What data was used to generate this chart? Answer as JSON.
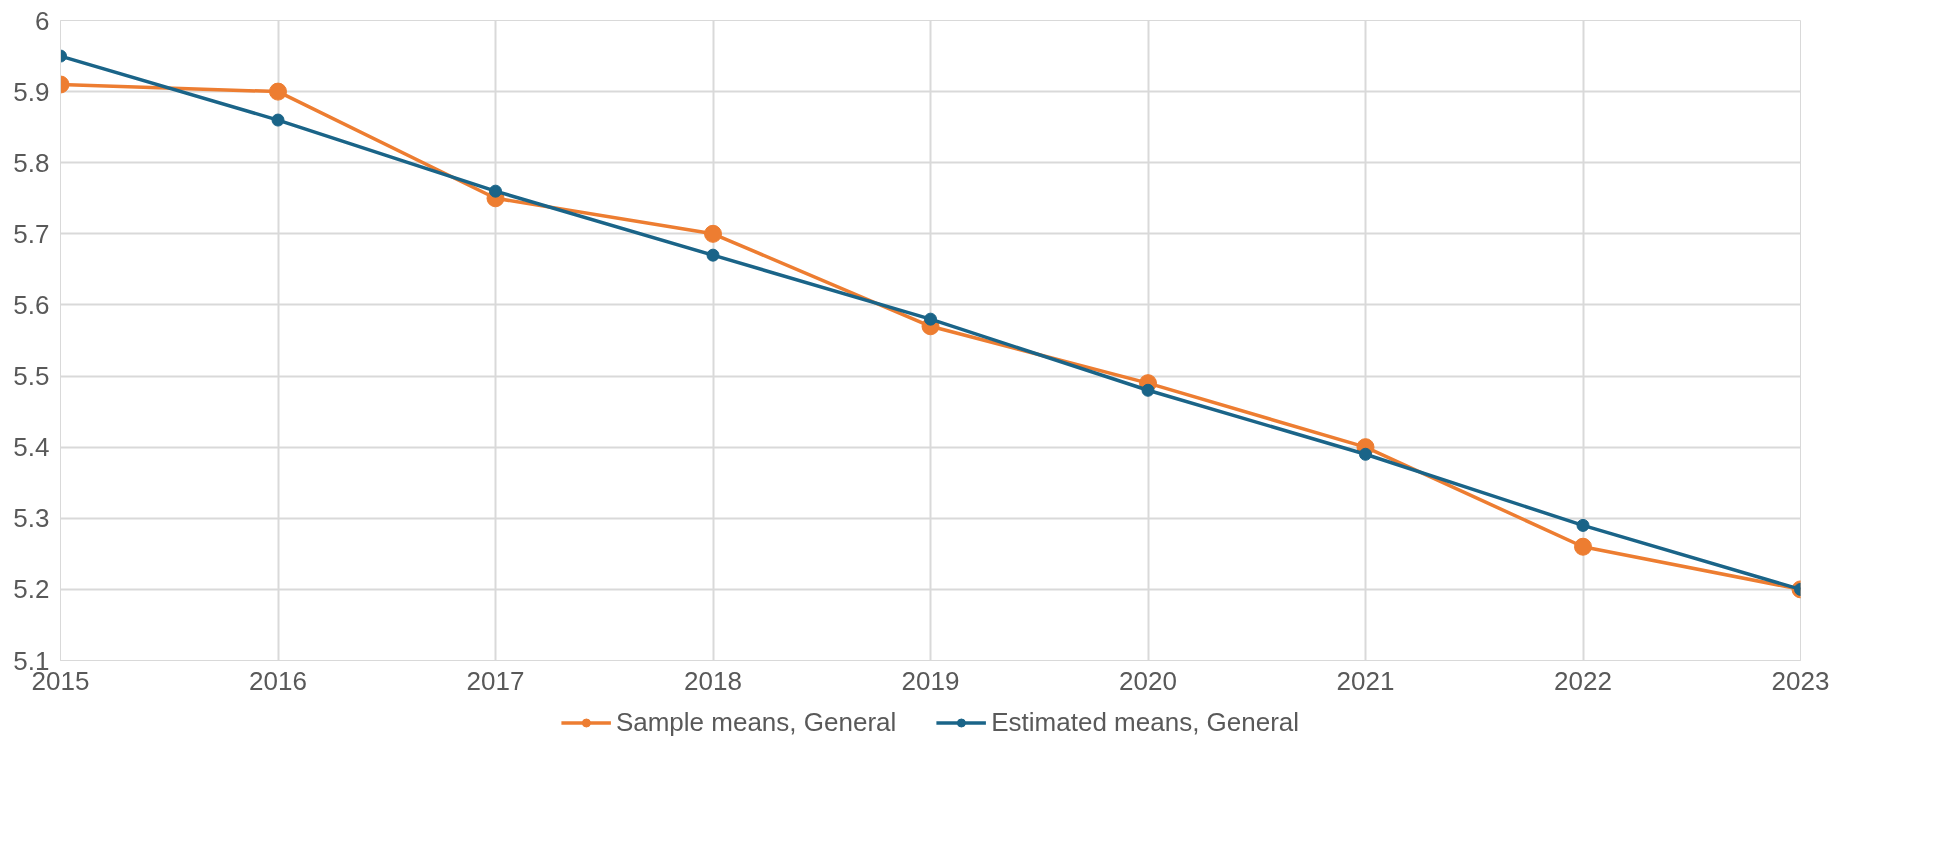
{
  "chart_data": {
    "type": "line",
    "x": [
      2015,
      2016,
      2017,
      2018,
      2019,
      2020,
      2021,
      2022,
      2023
    ],
    "series": [
      {
        "name": "Sample means, General",
        "color": "#ed7d31",
        "values": [
          5.91,
          5.9,
          5.75,
          5.7,
          5.57,
          5.49,
          5.4,
          5.26,
          5.2
        ]
      },
      {
        "name": "Estimated means, General",
        "color": "#1a6488",
        "values": [
          5.95,
          5.86,
          5.76,
          5.67,
          5.58,
          5.48,
          5.39,
          5.29,
          5.2
        ]
      }
    ],
    "xlim": [
      2015,
      2023
    ],
    "xticks": [
      2015,
      2016,
      2017,
      2018,
      2019,
      2020,
      2021,
      2022,
      2023
    ],
    "ylim": [
      5.1,
      6
    ],
    "yticks": [
      5.1,
      5.2,
      5.3,
      5.4,
      5.5,
      5.6,
      5.7,
      5.8,
      5.9,
      {
        "value": 6,
        "label": "6"
      }
    ],
    "grid": true,
    "legend": "bottom",
    "marker": "circle",
    "line_style": "solid"
  }
}
